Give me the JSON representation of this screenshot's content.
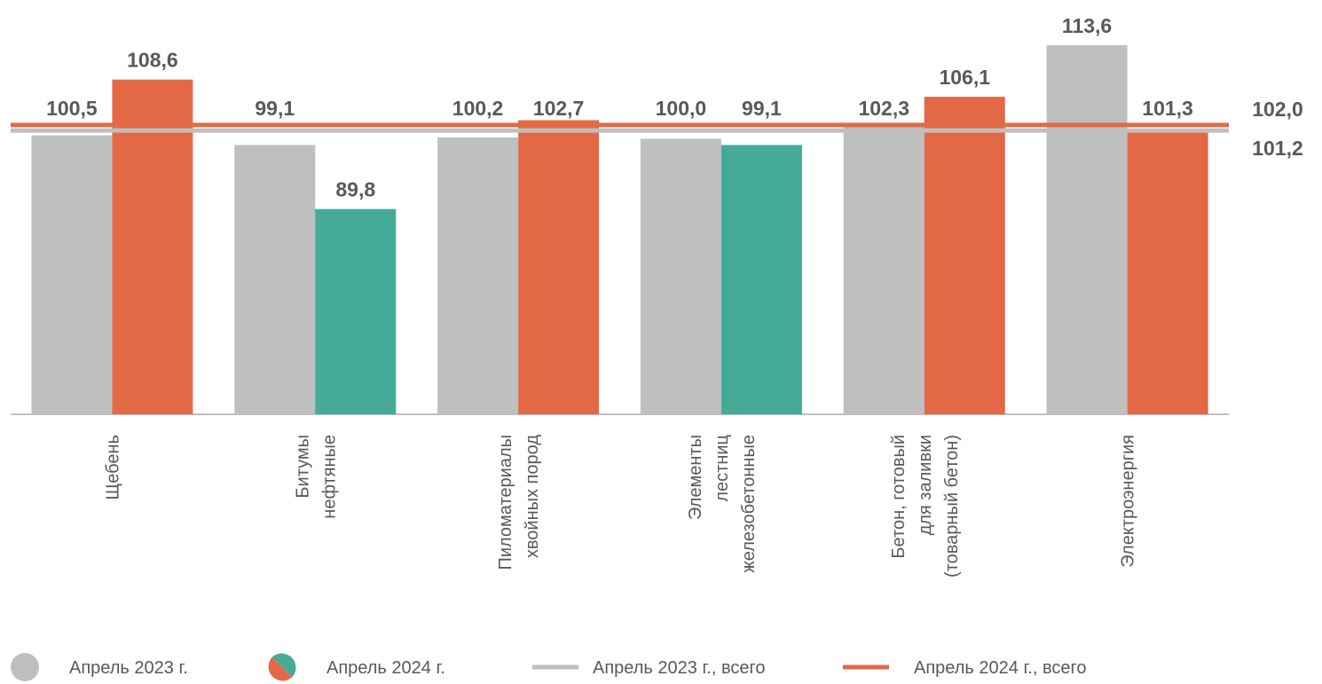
{
  "chart_data": {
    "type": "bar",
    "categories": [
      [
        "Щебень"
      ],
      [
        "Битумы",
        "нефтяные"
      ],
      [
        "Пиломатериалы",
        "хвойных пород"
      ],
      [
        "Элементы",
        "лестниц",
        "железобетонные"
      ],
      [
        "Бетон, готовый",
        "для заливки",
        "(товарный бетон)"
      ],
      [
        "Электроэнергия"
      ]
    ],
    "series": [
      {
        "name": "Апрель 2023 г.",
        "color": "#bfbfbf",
        "values": [
          100.5,
          99.1,
          100.2,
          100.0,
          102.3,
          113.6
        ],
        "value_labels": [
          "100,5",
          "99,1",
          "100,2",
          "100,0",
          "102,3",
          "113,6"
        ]
      },
      {
        "name": "Апрель 2024 г.",
        "colors": [
          "#e36946",
          "#45aa98",
          "#e36946",
          "#45aa98",
          "#e36946",
          "#e36946"
        ],
        "values": [
          108.6,
          89.8,
          102.7,
          99.1,
          106.1,
          101.3
        ],
        "value_labels": [
          "108,6",
          "89,8",
          "102,7",
          "99,1",
          "106,1",
          "101,3"
        ]
      }
    ],
    "reference_lines": [
      {
        "name": "Апрель 2023 г., всего",
        "color": "#bfbfbf",
        "value": 101.2,
        "value_label": "101,2"
      },
      {
        "name": "Апрель 2024 г., всего",
        "color": "#e36946",
        "value": 102.0,
        "value_label": "102,0"
      }
    ],
    "ylim": [
      60,
      115
    ]
  }
}
